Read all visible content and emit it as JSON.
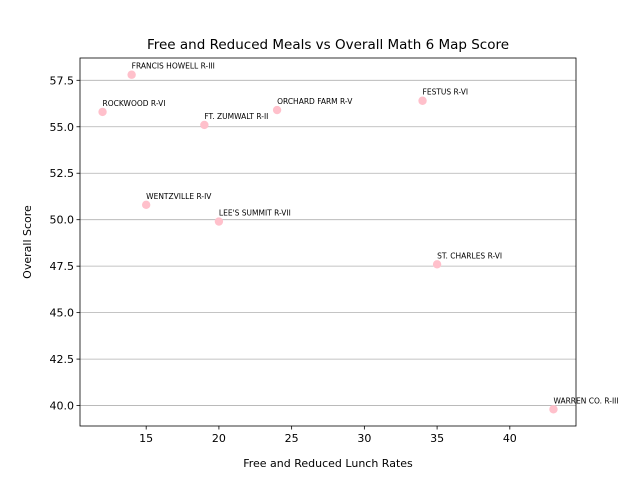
{
  "chart_data": {
    "type": "scatter",
    "title": "Free and Reduced Meals vs Overall Math 6 Map Score",
    "xlabel": "Free and Reduced Lunch Rates",
    "ylabel": "Overall Score",
    "xlim": [
      10.45,
      44.55
    ],
    "ylim": [
      38.9,
      58.7
    ],
    "xticks": [
      15,
      20,
      25,
      30,
      35,
      40
    ],
    "xtick_labels": [
      "15",
      "20",
      "25",
      "30",
      "35",
      "40"
    ],
    "yticks": [
      40.0,
      42.5,
      45.0,
      47.5,
      50.0,
      52.5,
      55.0,
      57.5
    ],
    "ytick_labels": [
      "40.0",
      "42.5",
      "45.0",
      "47.5",
      "50.0",
      "52.5",
      "55.0",
      "57.5"
    ],
    "grid": "y-axis only",
    "point_color": "#ffc0cb",
    "points": [
      {
        "label": "ROCKWOOD R-VI",
        "x": 12,
        "y": 55.8
      },
      {
        "label": "FRANCIS HOWELL R-III",
        "x": 14,
        "y": 57.8
      },
      {
        "label": "WENTZVILLE R-IV",
        "x": 15,
        "y": 50.8
      },
      {
        "label": "FT. ZUMWALT R-II",
        "x": 19,
        "y": 55.1
      },
      {
        "label": "LEE'S SUMMIT R-VII",
        "x": 20,
        "y": 49.9
      },
      {
        "label": "ORCHARD FARM R-V",
        "x": 24,
        "y": 55.9
      },
      {
        "label": "FESTUS R-VI",
        "x": 34,
        "y": 56.4
      },
      {
        "label": "ST. CHARLES R-VI",
        "x": 35,
        "y": 47.6
      },
      {
        "label": "WARREN CO. R-III",
        "x": 43,
        "y": 39.8
      }
    ]
  }
}
